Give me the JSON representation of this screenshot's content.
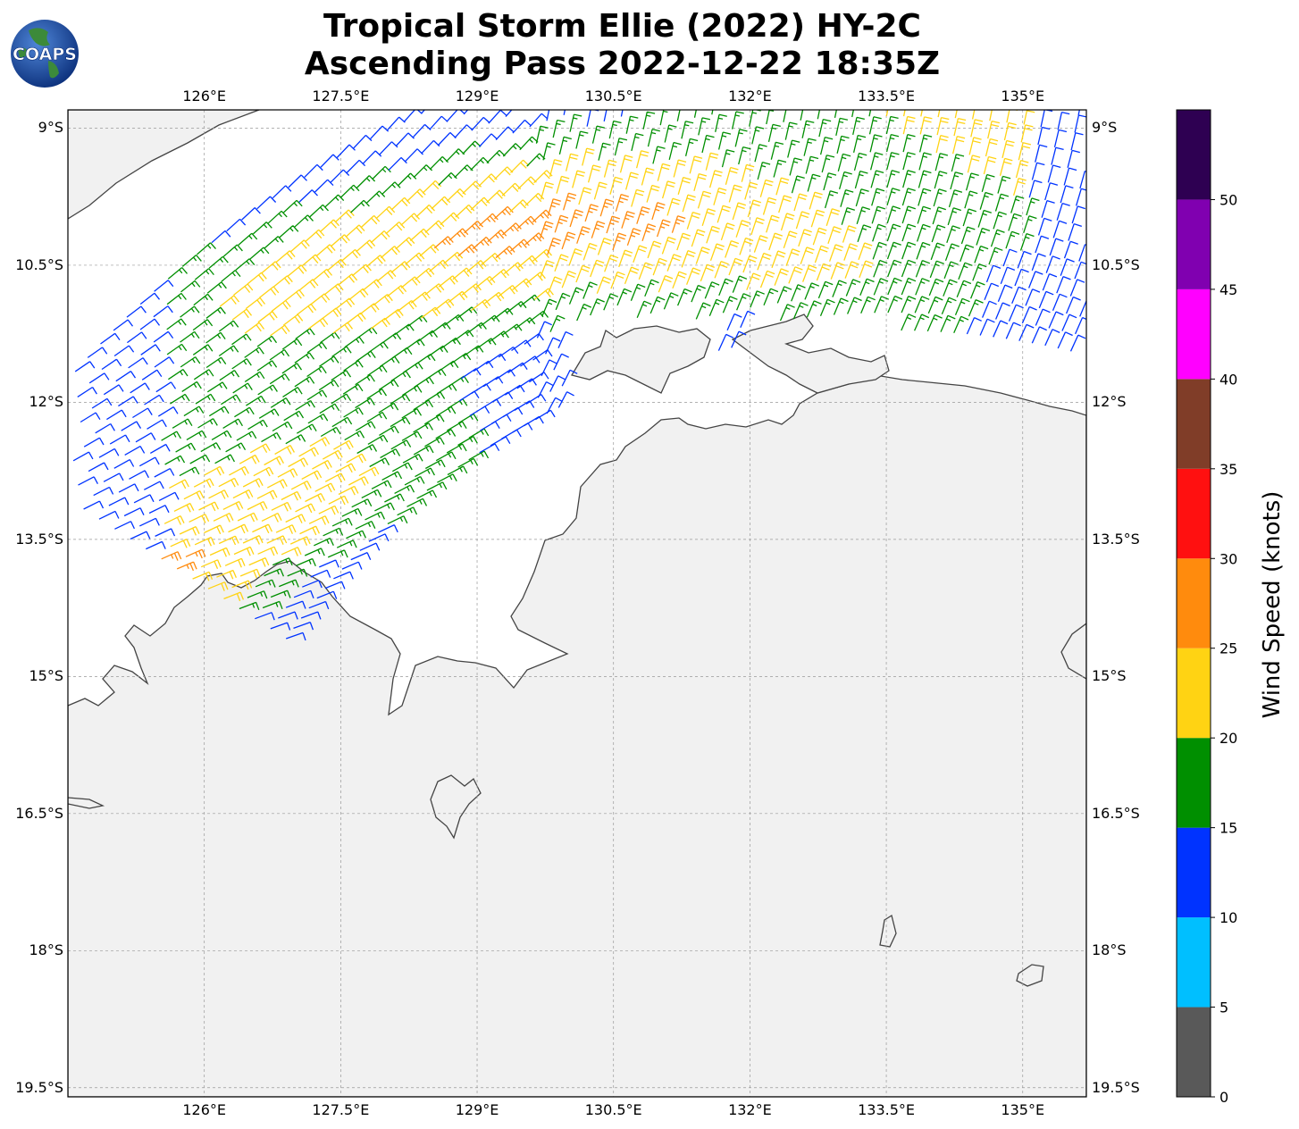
{
  "title": {
    "line1": "Tropical Storm Ellie (2022) HY-2C",
    "line2": "Ascending Pass 2022-12-22 18:35Z"
  },
  "logo": {
    "text": "COAPS",
    "icon": "coaps-globe-logo"
  },
  "map": {
    "lon_ticks": [
      "126°E",
      "127.5°E",
      "129°E",
      "130.5°E",
      "132°E",
      "133.5°E",
      "135°E"
    ],
    "lat_ticks": [
      "9°S",
      "10.5°S",
      "12°S",
      "13.5°S",
      "15°S",
      "16.5°S",
      "18°S",
      "19.5°S"
    ],
    "lon_values": [
      126,
      127.5,
      129,
      130.5,
      132,
      133.5,
      135
    ],
    "lat_values": [
      -9,
      -10.5,
      -12,
      -13.5,
      -15,
      -16.5,
      -18,
      -19.5
    ],
    "extent": {
      "lon_min": 124.5,
      "lon_max": 135.7,
      "lat_min": -19.6,
      "lat_max": -8.8
    },
    "ocean_color": "#ffffff",
    "land_color": "#f1f1f1",
    "coast_color": "#444444",
    "grid": true,
    "grid_style": "dashed"
  },
  "colorbar": {
    "title": "Wind Speed (knots)",
    "tick_labels": [
      "0",
      "5",
      "10",
      "15",
      "20",
      "25",
      "30",
      "35",
      "40",
      "45",
      "50"
    ],
    "levels": [
      {
        "from": 0,
        "to": 5,
        "color": "#595959"
      },
      {
        "from": 5,
        "to": 10,
        "color": "#00bfff"
      },
      {
        "from": 10,
        "to": 15,
        "color": "#0033ff"
      },
      {
        "from": 15,
        "to": 20,
        "color": "#008f00"
      },
      {
        "from": 20,
        "to": 25,
        "color": "#ffd313"
      },
      {
        "from": 25,
        "to": 30,
        "color": "#ff8b0d"
      },
      {
        "from": 30,
        "to": 35,
        "color": "#ff1010"
      },
      {
        "from": 35,
        "to": 40,
        "color": "#803d28"
      },
      {
        "from": 40,
        "to": 45,
        "color": "#ff00ff"
      },
      {
        "from": 45,
        "to": 50,
        "color": "#8000b0"
      },
      {
        "from": 50,
        "to": 55,
        "color": "#2e0052"
      }
    ]
  }
}
